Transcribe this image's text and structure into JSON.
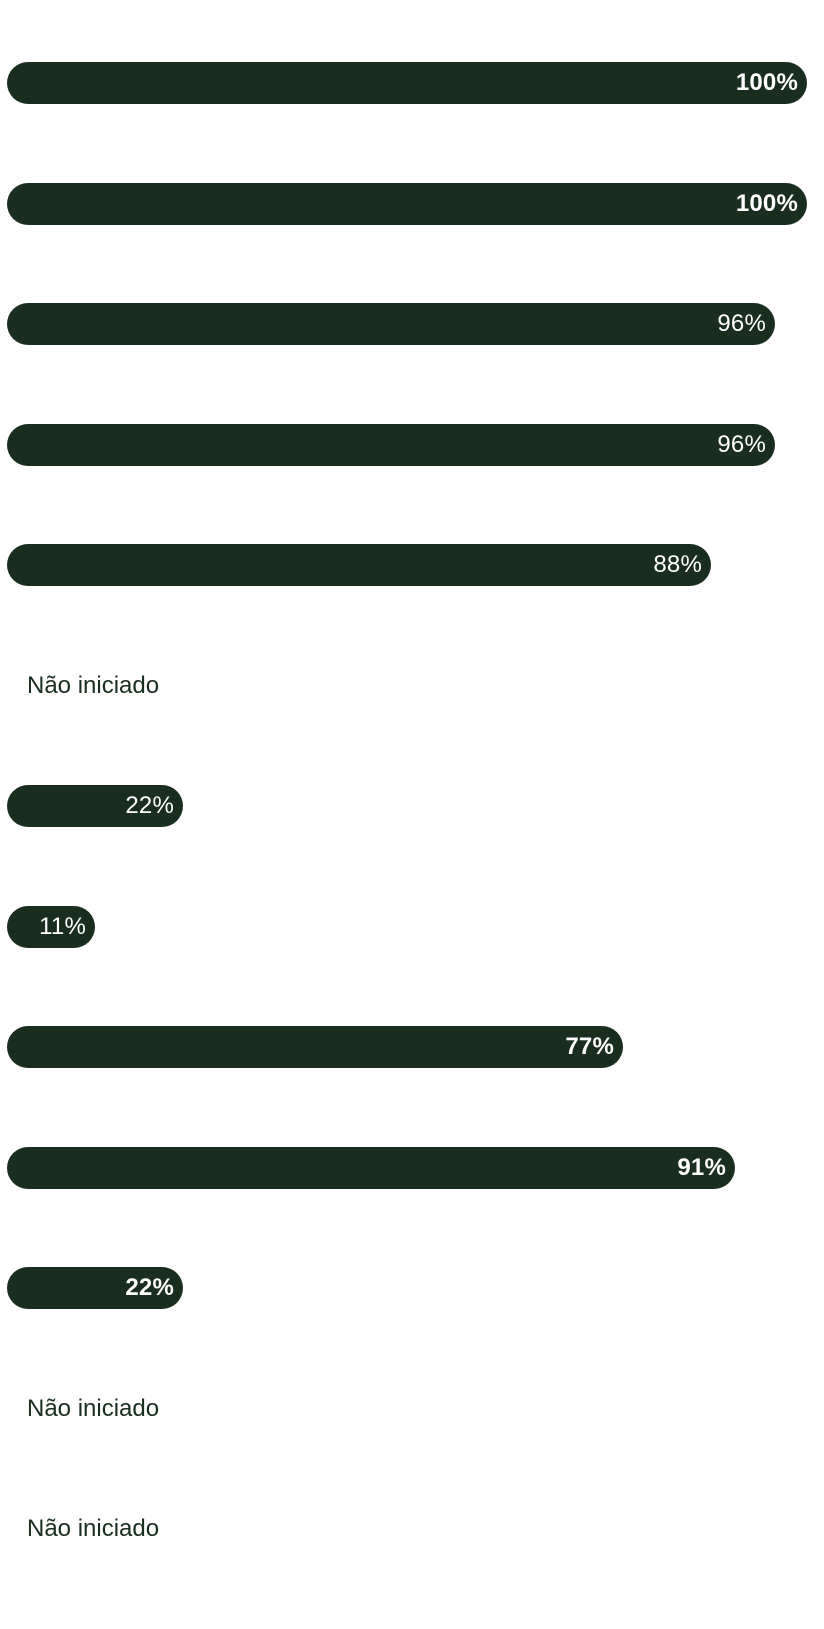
{
  "progress_list": {
    "not_started_label": "Não iniciado",
    "bar_color": "#1a2e20",
    "rows": [
      {
        "value": 100,
        "label": "100%",
        "bold": true
      },
      {
        "value": 100,
        "label": "100%",
        "bold": true
      },
      {
        "value": 96,
        "label": "96%",
        "bold": false
      },
      {
        "value": 96,
        "label": "96%",
        "bold": false
      },
      {
        "value": 88,
        "label": "88%",
        "bold": false
      },
      {
        "value": null,
        "status": "Não iniciado"
      },
      {
        "value": 22,
        "label": "22%",
        "bold": false
      },
      {
        "value": 11,
        "label": "11%",
        "bold": false
      },
      {
        "value": 77,
        "label": "77%",
        "bold": true
      },
      {
        "value": 91,
        "label": "91%",
        "bold": true
      },
      {
        "value": 22,
        "label": "22%",
        "bold": true
      },
      {
        "value": null,
        "status": "Não iniciado"
      },
      {
        "value": null,
        "status": "Não iniciado"
      }
    ]
  }
}
